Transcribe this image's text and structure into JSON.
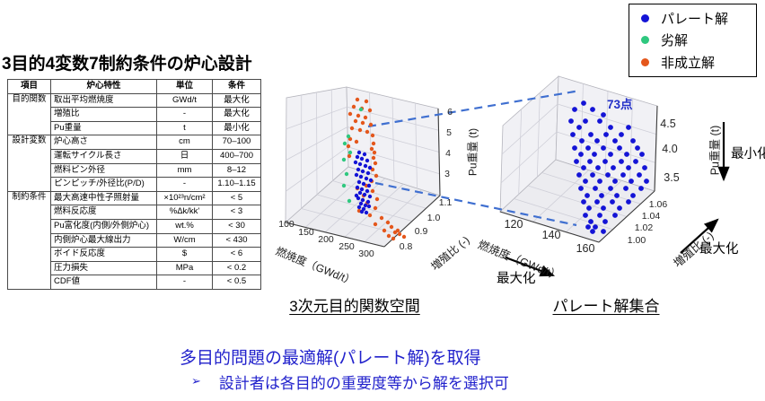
{
  "slide_title": "3目的4変数7制約条件の炉心設計",
  "table": {
    "headers": [
      "項目",
      "炉心特性",
      "単位",
      "条件"
    ],
    "groups": [
      {
        "name": "目的関数",
        "rows": [
          [
            "取出平均燃焼度",
            "GWd/t",
            "最大化"
          ],
          [
            "増殖比",
            "-",
            "最大化"
          ],
          [
            "Pu重量",
            "t",
            "最小化"
          ]
        ]
      },
      {
        "name": "設計変数",
        "rows": [
          [
            "炉心高さ",
            "cm",
            "70–100"
          ],
          [
            "運転サイクル長さ",
            "日",
            "400–700"
          ],
          [
            "燃料ピン外径",
            "mm",
            "8–12"
          ],
          [
            "ピンピッチ/外径比(P/D)",
            "-",
            "1.10–1.15"
          ]
        ]
      },
      {
        "name": "制約条件",
        "rows": [
          [
            "最大高速中性子照射量",
            "×10²³n/cm²",
            "< 5"
          ],
          [
            "燃料反応度",
            "%Δk/kk'",
            "< 3"
          ],
          [
            "Pu富化度(内側/外側炉心)",
            "wt.%",
            "< 30"
          ],
          [
            "内側炉心最大線出力",
            "W/cm",
            "< 430"
          ],
          [
            "ボイド反応度",
            "$",
            "< 6"
          ],
          [
            "圧力損失",
            "MPa",
            "< 0.2"
          ],
          [
            "CDF値",
            "-",
            "< 0.5"
          ]
        ]
      }
    ]
  },
  "legend": {
    "items": [
      {
        "label": "パレート解",
        "color": "#1414d6"
      },
      {
        "label": "劣解",
        "color": "#2fc87f"
      },
      {
        "label": "非成立解",
        "color": "#e4571c"
      }
    ]
  },
  "captions": {
    "left_plot": "3次元目的関数空間",
    "right_plot": "パレート解集合"
  },
  "annotations": {
    "pareto_count": "73点",
    "burnup_maximize": "最大化",
    "breeding_maximize": "最大化",
    "pu_minimize": "最小化"
  },
  "bottom_text": {
    "line1": "多目的問題の最適解(パレート解)を取得",
    "bullet": "➢",
    "line2": "設計者は各目的の重要度等から解を選択可"
  },
  "chart_data": [
    {
      "type": "scatter",
      "projection": "3d",
      "title": "3次元目的関数空間",
      "axes": {
        "x": {
          "label": "燃焼度（GWd/t）",
          "ticks": [
            "100",
            "150",
            "200",
            "250",
            "300"
          ]
        },
        "y": {
          "label": "増殖比 (-)",
          "ticks": [
            "0.8",
            "0.9",
            "1.0",
            "1.1"
          ]
        },
        "z": {
          "label": "Pu重量 (t)",
          "ticks": [
            "3",
            "4",
            "5",
            "6"
          ]
        }
      },
      "legend_position": "upper right",
      "grid": true,
      "series": [
        {
          "name": "パレート解",
          "count": 36
        },
        {
          "name": "劣解",
          "count": 8
        },
        {
          "name": "非成立解",
          "count": 47
        }
      ]
    },
    {
      "type": "scatter",
      "projection": "3d",
      "title": "パレート解集合",
      "annotation": "73点",
      "axes": {
        "x": {
          "label": "燃焼度（GWd/t）",
          "ticks": [
            "120",
            "140",
            "160"
          ]
        },
        "y": {
          "label": "増殖比 (-)",
          "ticks": [
            "1.00",
            "1.02",
            "1.04",
            "1.06"
          ]
        },
        "z": {
          "label": "Pu重量 (t)",
          "ticks": [
            "3.5",
            "4.0",
            "4.5"
          ]
        }
      },
      "grid": true,
      "series": [
        {
          "name": "パレート解",
          "count": 73
        }
      ],
      "objective_arrows": [
        {
          "axis": "燃焼度",
          "direction": "最大化"
        },
        {
          "axis": "増殖比",
          "direction": "最大化"
        },
        {
          "axis": "Pu重量",
          "direction": "最小化"
        }
      ]
    }
  ],
  "render": {
    "dashed_line_color": "#3f6fd0",
    "points": {
      "left": {
        "pareto": [
          [
            400,
            170
          ],
          [
            406,
            172
          ],
          [
            398,
            175
          ],
          [
            403,
            177
          ],
          [
            409,
            179
          ],
          [
            396,
            181
          ],
          [
            401,
            183
          ],
          [
            407,
            185
          ],
          [
            412,
            187
          ],
          [
            399,
            189
          ],
          [
            404,
            191
          ],
          [
            410,
            193
          ],
          [
            397,
            195
          ],
          [
            402,
            197
          ],
          [
            408,
            199
          ],
          [
            413,
            201
          ],
          [
            400,
            203
          ],
          [
            405,
            205
          ],
          [
            411,
            207
          ],
          [
            398,
            209
          ],
          [
            403,
            211
          ],
          [
            409,
            213
          ],
          [
            401,
            215
          ],
          [
            406,
            217
          ],
          [
            412,
            219
          ],
          [
            399,
            221
          ],
          [
            404,
            223
          ],
          [
            410,
            225
          ],
          [
            402,
            227
          ],
          [
            407,
            229
          ],
          [
            400,
            231
          ],
          [
            405,
            233
          ],
          [
            403,
            236
          ],
          [
            408,
            237
          ],
          [
            397,
            218
          ],
          [
            411,
            230
          ]
        ],
        "inferior": [
          [
            402,
            122
          ],
          [
            388,
            152
          ],
          [
            384,
            160
          ],
          [
            390,
            170
          ],
          [
            383,
            178
          ],
          [
            386,
            194
          ],
          [
            383,
            207
          ],
          [
            389,
            224
          ]
        ],
        "infeasible": [
          [
            398,
            111
          ],
          [
            408,
            113
          ],
          [
            394,
            119
          ],
          [
            403,
            121
          ],
          [
            412,
            123
          ],
          [
            390,
            127
          ],
          [
            399,
            129
          ],
          [
            407,
            131
          ],
          [
            396,
            135
          ],
          [
            404,
            137
          ],
          [
            413,
            139
          ],
          [
            392,
            143
          ],
          [
            401,
            145
          ],
          [
            409,
            147
          ],
          [
            415,
            151
          ],
          [
            390,
            155
          ],
          [
            397,
            158
          ],
          [
            416,
            160
          ],
          [
            388,
            163
          ],
          [
            414,
            166
          ],
          [
            417,
            170
          ],
          [
            389,
            174
          ],
          [
            416,
            176
          ],
          [
            418,
            182
          ],
          [
            415,
            189
          ],
          [
            419,
            196
          ],
          [
            414,
            202
          ],
          [
            408,
            207
          ],
          [
            398,
            210
          ],
          [
            415,
            213
          ],
          [
            405,
            218
          ],
          [
            420,
            222
          ],
          [
            409,
            226
          ],
          [
            418,
            232
          ],
          [
            400,
            235
          ],
          [
            412,
            240
          ],
          [
            425,
            243
          ],
          [
            432,
            248
          ],
          [
            418,
            250
          ],
          [
            436,
            253
          ],
          [
            428,
            257
          ],
          [
            440,
            259
          ],
          [
            433,
            263
          ],
          [
            445,
            261
          ],
          [
            438,
            266
          ],
          [
            450,
            264
          ],
          [
            443,
            257
          ]
        ]
      },
      "right": {
        "pareto": [
          [
            650,
            115
          ],
          [
            640,
            122
          ],
          [
            660,
            122
          ],
          [
            672,
            128
          ],
          [
            636,
            135
          ],
          [
            652,
            135
          ],
          [
            668,
            135
          ],
          [
            645,
            142
          ],
          [
            680,
            142
          ],
          [
            700,
            142
          ],
          [
            638,
            150
          ],
          [
            658,
            150
          ],
          [
            675,
            150
          ],
          [
            692,
            150
          ],
          [
            648,
            157
          ],
          [
            665,
            157
          ],
          [
            685,
            157
          ],
          [
            705,
            157
          ],
          [
            640,
            165
          ],
          [
            655,
            165
          ],
          [
            672,
            165
          ],
          [
            690,
            165
          ],
          [
            710,
            165
          ],
          [
            647,
            172
          ],
          [
            662,
            172
          ],
          [
            680,
            172
          ],
          [
            698,
            172
          ],
          [
            715,
            172
          ],
          [
            642,
            180
          ],
          [
            657,
            180
          ],
          [
            674,
            180
          ],
          [
            692,
            180
          ],
          [
            708,
            180
          ],
          [
            650,
            187
          ],
          [
            666,
            187
          ],
          [
            683,
            187
          ],
          [
            700,
            187
          ],
          [
            718,
            187
          ],
          [
            645,
            195
          ],
          [
            660,
            195
          ],
          [
            677,
            195
          ],
          [
            694,
            195
          ],
          [
            712,
            195
          ],
          [
            652,
            202
          ],
          [
            668,
            202
          ],
          [
            685,
            202
          ],
          [
            703,
            202
          ],
          [
            720,
            202
          ],
          [
            647,
            210
          ],
          [
            663,
            210
          ],
          [
            680,
            210
          ],
          [
            697,
            210
          ],
          [
            714,
            210
          ],
          [
            654,
            218
          ],
          [
            670,
            218
          ],
          [
            687,
            218
          ],
          [
            705,
            218
          ],
          [
            650,
            225
          ],
          [
            665,
            225
          ],
          [
            682,
            225
          ],
          [
            700,
            225
          ],
          [
            656,
            232
          ],
          [
            672,
            232
          ],
          [
            690,
            232
          ],
          [
            652,
            240
          ],
          [
            668,
            240
          ],
          [
            685,
            240
          ],
          [
            658,
            247
          ],
          [
            674,
            247
          ],
          [
            655,
            253
          ],
          [
            663,
            253
          ],
          [
            660,
            258
          ],
          [
            672,
            258
          ]
        ]
      }
    }
  }
}
